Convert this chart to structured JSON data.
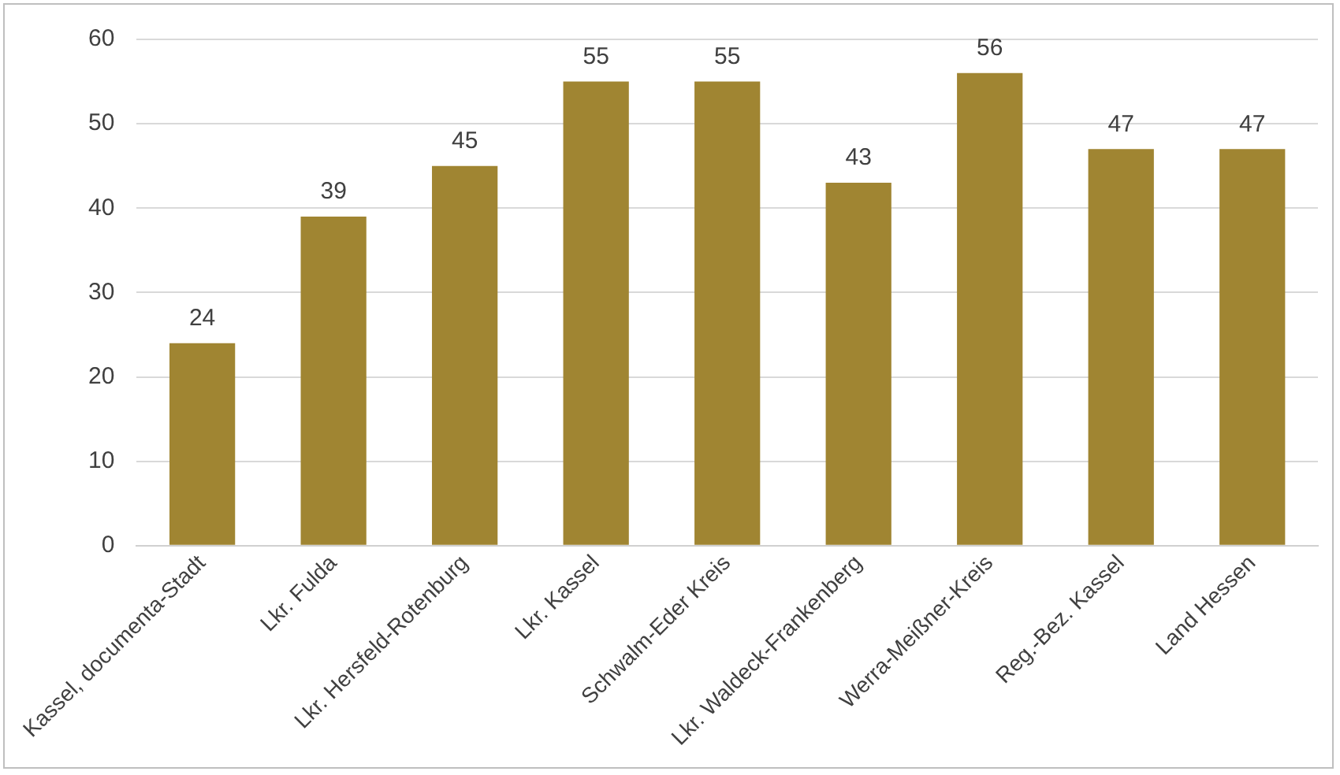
{
  "chart_data": {
    "type": "bar",
    "categories": [
      "Kassel, documenta-Stadt",
      "Lkr. Fulda",
      "Lkr. Hersfeld-Rotenburg",
      "Lkr. Kassel",
      "Schwalm-Eder Kreis",
      "Lkr. Waldeck-Frankenberg",
      "Werra-Meißner-Kreis",
      "Reg.-Bez. Kassel",
      "Land Hessen"
    ],
    "values": [
      24,
      39,
      45,
      55,
      55,
      43,
      56,
      47,
      47
    ],
    "color": "#a08532",
    "ylim": [
      0,
      60
    ],
    "yticks": [
      0,
      10,
      20,
      30,
      40,
      50,
      60
    ],
    "grid": "y",
    "data_labels": true
  }
}
